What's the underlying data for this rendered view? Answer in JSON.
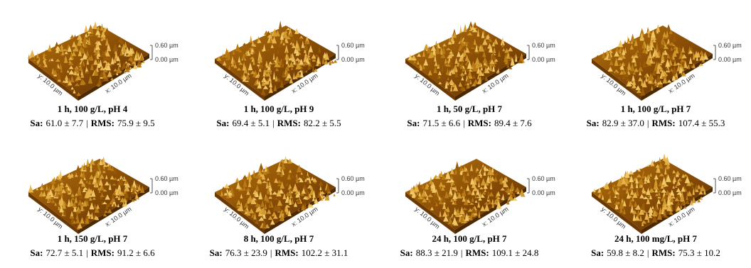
{
  "panels": [
    {
      "title": "1 h, 100 g/L, pH 4",
      "sa_label": "Sa:",
      "sa": "61.0 ± 7.7",
      "separator": "|",
      "rms_label": "RMS:",
      "rms": "75.9 ± 9.5",
      "z_max": "0.60 µm",
      "z_min": "0.00 µm",
      "y_axis": "y: 10.0 µm",
      "x_axis": "x: 10.0 µm"
    },
    {
      "title": "1 h, 100 g/L, pH 9",
      "sa_label": "Sa:",
      "sa": "69.4 ± 5.1",
      "separator": "|",
      "rms_label": "RMS:",
      "rms": "82.2 ± 5.5",
      "z_max": "0.60 µm",
      "z_min": "0.00 µm",
      "y_axis": "y: 10.0 µm",
      "x_axis": "x: 10.0 µm"
    },
    {
      "title": "1 h, 50 g/L, pH 7",
      "sa_label": "Sa:",
      "sa": "71.5 ± 6.6",
      "separator": "|",
      "rms_label": "RMS:",
      "rms": "89.4 ± 7.6",
      "z_max": "0.60 µm",
      "z_min": "0.00 µm",
      "y_axis": "y: 10.0 µm",
      "x_axis": "x: 10.0 µm"
    },
    {
      "title": "1 h, 100 g/L, pH 7",
      "sa_label": "Sa:",
      "sa": "82.9 ± 37.0",
      "separator": "|",
      "rms_label": "RMS:",
      "rms": "107.4  ± 55.3",
      "z_max": "0.60 µm",
      "z_min": "0.00 µm",
      "y_axis": "y: 10.0 µm",
      "x_axis": "x: 10.0 µm"
    },
    {
      "title": "1 h, 150 g/L, pH 7",
      "sa_label": "Sa:",
      "sa": "72.7 ± 5.1",
      "separator": "|",
      "rms_label": "RMS:",
      "rms": "91.2 ± 6.6",
      "z_max": "0.60 µm",
      "z_min": "0.00 µm",
      "y_axis": "y: 10.0 µm",
      "x_axis": "x: 10.0 µm"
    },
    {
      "title": "8 h, 100 g/L, pH 7",
      "sa_label": "Sa:",
      "sa": "76.3 ± 23.9",
      "separator": "|",
      "rms_label": "RMS:",
      "rms": "102.2 ± 31.1",
      "z_max": "0.60 µm",
      "z_min": "0.00 µm",
      "y_axis": "y: 10.0 µm",
      "x_axis": "x: 10.0 µm"
    },
    {
      "title": "24 h, 100 g/L, pH 7",
      "sa_label": "Sa:",
      "sa": "88.3 ± 21.9",
      "separator": "|",
      "rms_label": "RMS:",
      "rms": "109.1 ± 24.8",
      "z_max": "0.60 µm",
      "z_min": "0.00 µm",
      "y_axis": "y: 10.0 µm",
      "x_axis": "x: 10.0 µm"
    },
    {
      "title": "24 h, 100 mg/L, pH 7",
      "sa_label": "Sa:",
      "sa": "59.8 ± 8.2",
      "separator": "|",
      "rms_label": "RMS:",
      "rms": "75.3 ± 10.2",
      "z_max": "0.60 µm",
      "z_min": "0.00 µm",
      "y_axis": "y: 10.0 µm",
      "x_axis": "x: 10.0 µm"
    }
  ]
}
